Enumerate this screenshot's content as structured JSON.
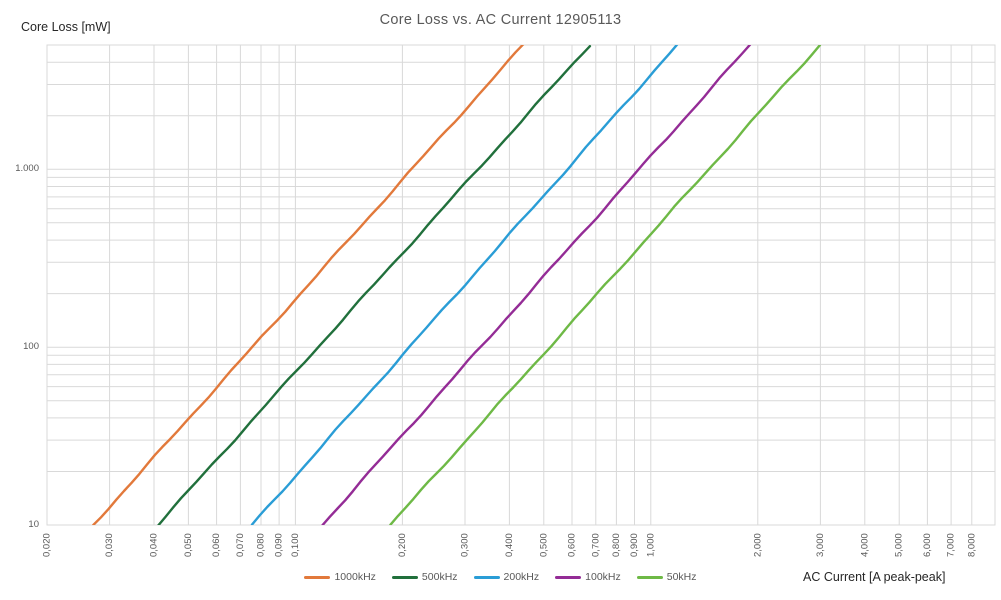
{
  "chart_data": {
    "type": "line",
    "title": "Core Loss vs. AC Current 12905113",
    "xlabel": "AC Current [A peak-peak]",
    "ylabel": "Core Loss [mW]",
    "x_scale": "log",
    "y_scale": "log",
    "xlim": [
      0.02,
      9.3
    ],
    "ylim": [
      10,
      5000
    ],
    "grid": "major and minor log gridlines, both axes",
    "grid_color": "#D9D9D9",
    "legend_position": "bottom-center",
    "x_ticks": [
      {
        "value": 0.02,
        "label": "0,020"
      },
      {
        "value": 0.03,
        "label": "0,030"
      },
      {
        "value": 0.04,
        "label": "0,040"
      },
      {
        "value": 0.05,
        "label": "0,050"
      },
      {
        "value": 0.06,
        "label": "0,060"
      },
      {
        "value": 0.07,
        "label": "0,070"
      },
      {
        "value": 0.08,
        "label": "0,080"
      },
      {
        "value": 0.09,
        "label": "0,090"
      },
      {
        "value": 0.1,
        "label": "0,100"
      },
      {
        "value": 0.2,
        "label": "0,200"
      },
      {
        "value": 0.3,
        "label": "0,300"
      },
      {
        "value": 0.4,
        "label": "0,400"
      },
      {
        "value": 0.5,
        "label": "0,500"
      },
      {
        "value": 0.6,
        "label": "0,600"
      },
      {
        "value": 0.7,
        "label": "0,700"
      },
      {
        "value": 0.8,
        "label": "0,800"
      },
      {
        "value": 0.9,
        "label": "0,900"
      },
      {
        "value": 1,
        "label": "1,000"
      },
      {
        "value": 2,
        "label": "2,000"
      },
      {
        "value": 3,
        "label": "3,000"
      },
      {
        "value": 4,
        "label": "4,000"
      },
      {
        "value": 5,
        "label": "5,000"
      },
      {
        "value": 6,
        "label": "6,000"
      },
      {
        "value": 7,
        "label": "7,000"
      },
      {
        "value": 8,
        "label": "8,000"
      }
    ],
    "y_ticks": [
      {
        "value": 10,
        "label": "10"
      },
      {
        "value": 100,
        "label": "100"
      },
      {
        "value": 1000,
        "label": "1.000"
      }
    ],
    "series": [
      {
        "name": "1000kHz",
        "color": "#E2793B",
        "power_law_exponent": 2.23,
        "points": [
          [
            0.027,
            10
          ],
          [
            0.437,
            5000
          ]
        ]
      },
      {
        "name": "500kHz",
        "color": "#21703C",
        "power_law_exponent": 2.22,
        "points": [
          [
            0.041,
            10
          ],
          [
            0.674,
            5000
          ]
        ]
      },
      {
        "name": "200kHz",
        "color": "#2A9DD6",
        "power_law_exponent": 2.26,
        "points": [
          [
            0.0755,
            10
          ],
          [
            1.185,
            5000
          ]
        ]
      },
      {
        "name": "100kHz",
        "color": "#942C96",
        "power_law_exponent": 2.24,
        "points": [
          [
            0.119,
            10
          ],
          [
            1.9,
            5000
          ]
        ]
      },
      {
        "name": "50kHz",
        "color": "#6EB946",
        "power_law_exponent": 2.23,
        "points": [
          [
            0.185,
            10
          ],
          [
            2.99,
            5000
          ]
        ]
      }
    ],
    "text_colors": {
      "title": "#595959",
      "ticks": "#595959",
      "axis_titles": "#262626",
      "legend": "#595959"
    }
  }
}
